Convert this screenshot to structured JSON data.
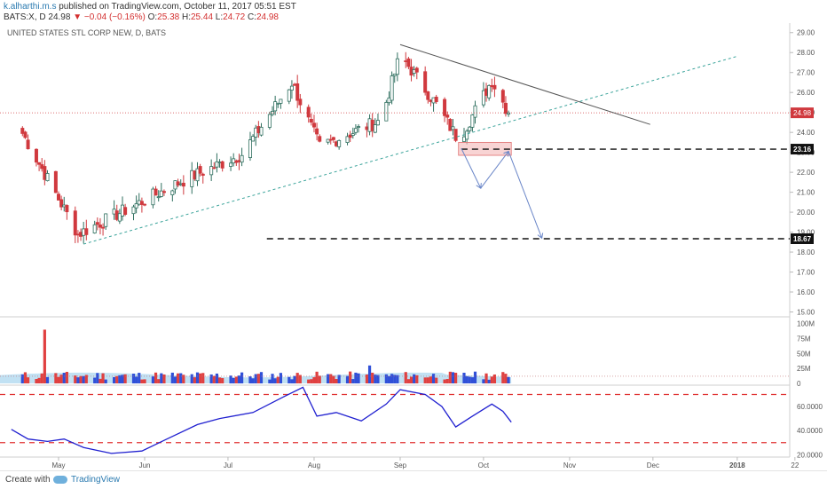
{
  "header": {
    "author": "k.alharthi.m.s",
    "published_text": "published on TradingView.com, October 11, 2017 05:51 EST",
    "symbol": "BATS:X, D",
    "price": "24.98",
    "change": "▼ −0.04 (−0.16%)",
    "o_label": "O:",
    "o_value": "25.38",
    "h_label": "H:",
    "h_value": "25.44",
    "l_label": "L:",
    "l_value": "24.72",
    "c_label": "C:",
    "c_value": "24.98"
  },
  "footer": {
    "created_with": "Create with",
    "brand": "TradingView"
  },
  "colors": {
    "up": "#2f6f5f",
    "down": "#d0393e",
    "vol_up": "#3050d8",
    "vol_down": "#e04040",
    "rsi": "#2020d0",
    "accent": "#2a7ab0"
  },
  "chart_data": {
    "type": "candlestick",
    "title": "UNITED STATES STL CORP NEW, D, BATS",
    "price_axis": {
      "ticks": [
        "29.00",
        "28.00",
        "27.00",
        "26.00",
        "25.00",
        "24.00",
        "23.00",
        "22.00",
        "21.00",
        "20.00",
        "19.00",
        "18.00",
        "17.00",
        "16.00",
        "15.00"
      ],
      "ylim": [
        14.8,
        29.3
      ]
    },
    "time_axis": {
      "labels": [
        "May",
        "Jun",
        "Jul",
        "Aug",
        "Sep",
        "Oct",
        "Nov",
        "Dec",
        "2018",
        "22"
      ]
    },
    "price_labels": [
      {
        "value": 24.98,
        "text": "24.98",
        "style": "last"
      },
      {
        "value": 23.16,
        "text": "23.16",
        "style": "level"
      },
      {
        "value": 18.67,
        "text": "18.67",
        "style": "level"
      }
    ],
    "anchors": [
      {
        "month": "Apr",
        "day": 18,
        "close": 23.95
      },
      {
        "month": "May",
        "day": 8,
        "close": 18.9
      },
      {
        "month": "Jun",
        "day": 15,
        "close": 21.6
      },
      {
        "month": "Jul",
        "day": 6,
        "close": 22.9
      },
      {
        "month": "Jul",
        "day": 24,
        "close": 26.5
      },
      {
        "month": "Aug",
        "day": 3,
        "close": 23.3
      },
      {
        "month": "Aug",
        "day": 25,
        "close": 24.6
      },
      {
        "month": "Sep",
        "day": 1,
        "close": 27.9
      },
      {
        "month": "Sep",
        "day": 14,
        "close": 25.4
      },
      {
        "month": "Sep",
        "day": 22,
        "close": 23.6
      },
      {
        "month": "Oct",
        "day": 4,
        "close": 26.6
      },
      {
        "month": "Oct",
        "day": 10,
        "close": 24.98
      }
    ],
    "drawings": {
      "resistance_line": {
        "from": [
          "Sep",
          1,
          28.4
        ],
        "to": [
          "Nov",
          30,
          24.4
        ]
      },
      "support_line": {
        "from": [
          "May",
          10,
          18.4
        ],
        "to": [
          "Dec",
          31,
          27.8
        ]
      },
      "support_zone": {
        "low": 22.85,
        "high": 23.5
      },
      "levels": [
        23.16,
        18.67
      ],
      "projection_path": [
        [
          "Sep",
          23,
          23.2
        ],
        [
          "Sep",
          30,
          21.2
        ],
        [
          "Oct",
          10,
          23.05
        ],
        [
          "Oct",
          22,
          18.7
        ]
      ]
    },
    "volume_axis": {
      "ticks": [
        "100M",
        "75M",
        "50M",
        "25M",
        "0"
      ],
      "ylim": [
        0,
        110
      ]
    },
    "volume_peaks": [
      {
        "month": "Apr",
        "day": 26,
        "value": 90
      },
      {
        "month": "Jul",
        "day": 28,
        "value": 25
      },
      {
        "month": "Aug",
        "day": 21,
        "value": 30
      }
    ],
    "rsi_axis": {
      "ticks": [
        "60.0000",
        "40.0000",
        "20.0000"
      ],
      "ylim": [
        18,
        77
      ]
    },
    "rsi_bands": [
      70,
      30
    ],
    "rsi_points": [
      [
        "Apr",
        14,
        41
      ],
      [
        "Apr",
        20,
        33
      ],
      [
        "Apr",
        27,
        31
      ],
      [
        "May",
        3,
        33
      ],
      [
        "May",
        10,
        26
      ],
      [
        "May",
        20,
        21
      ],
      [
        "May",
        31,
        23
      ],
      [
        "Jun",
        9,
        33
      ],
      [
        "Jun",
        20,
        45
      ],
      [
        "Jun",
        28,
        50
      ],
      [
        "Jul",
        10,
        55
      ],
      [
        "Jul",
        21,
        68
      ],
      [
        "Jul",
        28,
        76
      ],
      [
        "Aug",
        2,
        52
      ],
      [
        "Aug",
        9,
        55
      ],
      [
        "Aug",
        18,
        48
      ],
      [
        "Aug",
        27,
        62
      ],
      [
        "Sep",
        1,
        74
      ],
      [
        "Sep",
        10,
        70
      ],
      [
        "Sep",
        16,
        60
      ],
      [
        "Sep",
        21,
        43
      ],
      [
        "Sep",
        27,
        52
      ],
      [
        "Oct",
        4,
        62
      ],
      [
        "Oct",
        8,
        56
      ],
      [
        "Oct",
        11,
        47
      ]
    ]
  }
}
